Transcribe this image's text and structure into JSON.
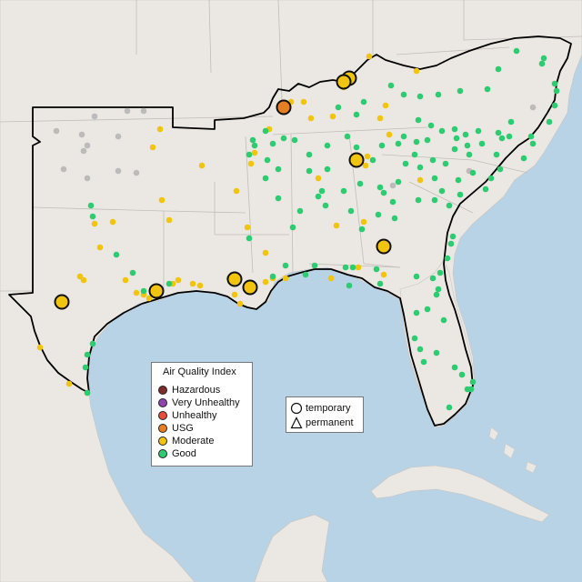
{
  "legend": {
    "title": "Air Quality Index",
    "items": [
      {
        "label": "Hazardous",
        "color": "#7e2b2b"
      },
      {
        "label": "Very Unhealthy",
        "color": "#8e44ad"
      },
      {
        "label": "Unhealthy",
        "color": "#e74c3c"
      },
      {
        "label": "USG",
        "color": "#e67e22"
      },
      {
        "label": "Moderate",
        "color": "#f1c40f"
      },
      {
        "label": "Good",
        "color": "#2ecc71"
      }
    ]
  },
  "shape_legend": {
    "temporary": "temporary",
    "permanent": "permanent"
  },
  "colors": {
    "water": "#b9d3e6",
    "land": "#ebe7e3",
    "no_data": "#bbbbbb",
    "good": "#2ecc71",
    "moderate": "#f1c40f",
    "usg": "#e67e22"
  }
}
